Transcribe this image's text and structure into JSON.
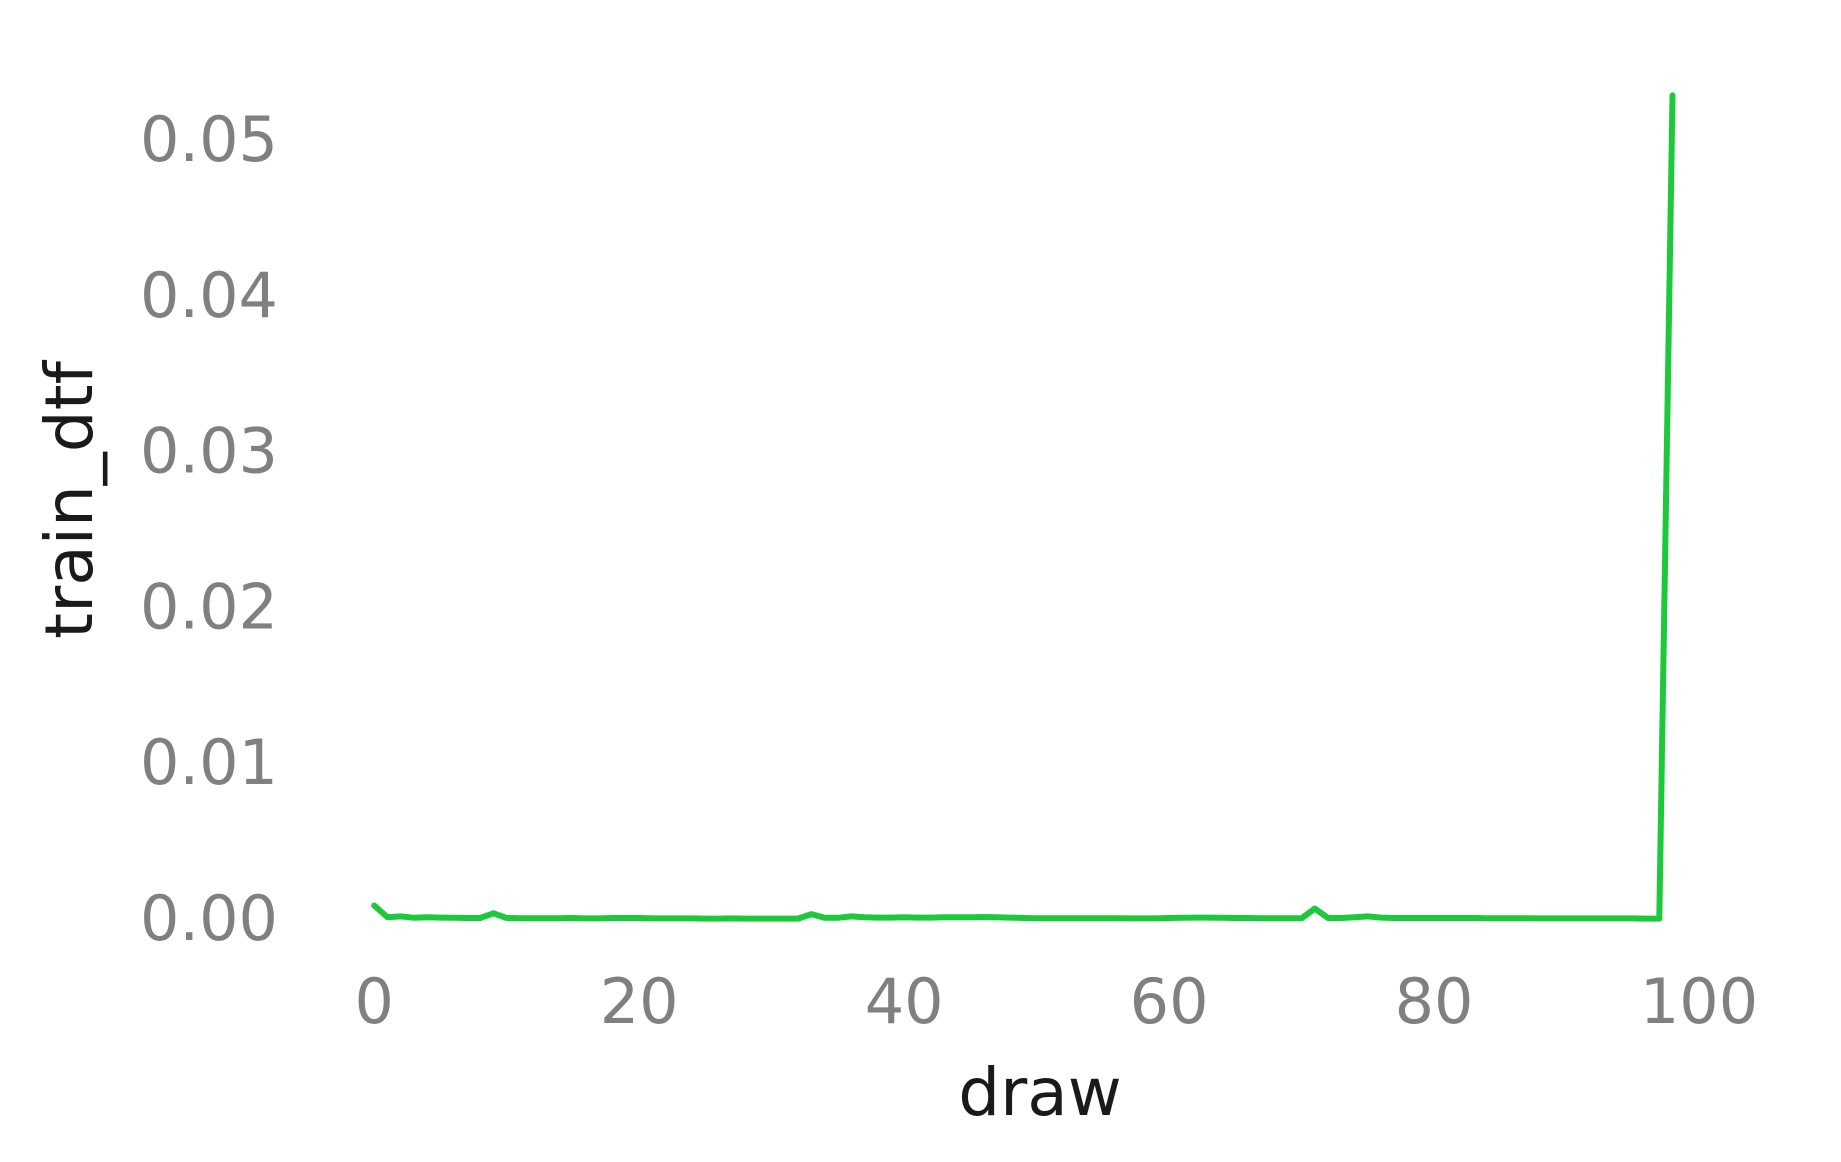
{
  "chart_data": {
    "type": "line",
    "xlabel": "draw",
    "ylabel": "train_dtf",
    "xlim": [
      -5,
      104
    ],
    "ylim": [
      -0.0018,
      0.057
    ],
    "xticks": [
      0,
      20,
      40,
      60,
      80,
      100
    ],
    "yticks": [
      0.0,
      0.01,
      0.02,
      0.03,
      0.04,
      0.05
    ],
    "grid": false,
    "legend": "none",
    "colors": {
      "line": "#1dc93a",
      "tick_text": "#808080",
      "label_text": "#1a1a1a"
    },
    "series": [
      {
        "x": [
          0,
          1,
          2,
          3,
          4,
          5,
          6,
          7,
          8,
          9,
          10,
          11,
          12,
          13,
          14,
          15,
          16,
          17,
          18,
          19,
          20,
          21,
          22,
          23,
          24,
          25,
          26,
          27,
          28,
          29,
          30,
          31,
          32,
          33,
          34,
          35,
          36,
          37,
          38,
          39,
          40,
          41,
          42,
          43,
          44,
          45,
          46,
          47,
          48,
          49,
          50,
          51,
          52,
          53,
          54,
          55,
          56,
          57,
          58,
          59,
          60,
          61,
          62,
          63,
          64,
          65,
          66,
          67,
          68,
          69,
          70,
          71,
          72,
          73,
          74,
          75,
          76,
          77,
          78,
          79,
          80,
          81,
          82,
          83,
          84,
          85,
          86,
          87,
          88,
          89,
          90,
          91,
          92,
          93,
          94,
          95,
          96,
          97,
          98
        ],
        "y": [
          0.0008,
          5e-05,
          0.0001,
          1e-05,
          5e-05,
          2e-05,
          1e-05,
          0.0,
          0.0,
          0.0003,
          0.0,
          -2e-05,
          -2e-05,
          -2e-05,
          -2e-05,
          0.0,
          -3e-05,
          -3e-05,
          0.0,
          0.0,
          0.0,
          -3e-05,
          -3e-05,
          -3e-05,
          -3e-05,
          -4e-05,
          -4e-05,
          -3e-05,
          -4e-05,
          -4e-05,
          -4e-05,
          -4e-05,
          -4e-05,
          0.00025,
          1e-05,
          1e-05,
          0.0001,
          5e-05,
          2e-05,
          2e-05,
          5e-05,
          2e-05,
          2e-05,
          5e-05,
          4e-05,
          4e-05,
          6e-05,
          4e-05,
          2e-05,
          0.0,
          -2e-05,
          -2e-05,
          -2e-05,
          -2e-05,
          -2e-05,
          -2e-05,
          -2e-05,
          -3e-05,
          -3e-05,
          -3e-05,
          0.0,
          1e-05,
          2e-05,
          2e-05,
          1e-05,
          0.0,
          0.0,
          -2e-05,
          -2e-05,
          -2e-05,
          -2e-05,
          0.0006,
          0.0,
          0.0,
          5e-05,
          0.0001,
          2e-05,
          0.0,
          0.0,
          0.0,
          0.0,
          0.0,
          0.0,
          0.0,
          -2e-05,
          -2e-05,
          -2e-05,
          -2e-05,
          -3e-05,
          -3e-05,
          -3e-05,
          -3e-05,
          -3e-05,
          -3e-05,
          -3e-05,
          -3e-05,
          -4e-05,
          -4e-05,
          0.0528
        ]
      }
    ]
  }
}
